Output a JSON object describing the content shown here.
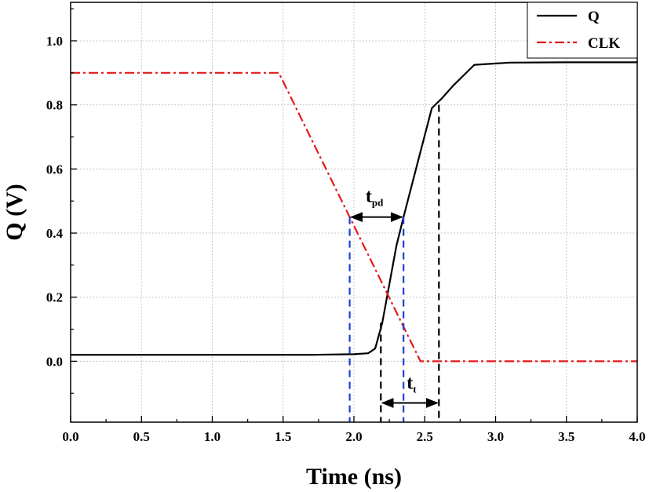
{
  "chart_data": {
    "type": "line",
    "title": "",
    "xlabel": "Time (ns)",
    "ylabel": "Q (V)",
    "xlim": [
      0.0,
      4.0
    ],
    "ylim": [
      -0.19,
      1.12
    ],
    "x_ticks": [
      "0.0",
      "0.5",
      "1.0",
      "1.5",
      "2.0",
      "2.5",
      "3.0",
      "3.5",
      "4.0"
    ],
    "y_ticks": [
      "0.0",
      "0.2",
      "0.4",
      "0.6",
      "0.8",
      "1.0"
    ],
    "grid": true,
    "legend_position": "top-right",
    "series": [
      {
        "name": "Q",
        "color": "#000000",
        "style": "solid",
        "x": [
          0.0,
          1.7,
          2.0,
          2.1,
          2.15,
          2.2,
          2.25,
          2.3,
          2.35,
          2.45,
          2.55,
          2.62,
          2.7,
          2.85,
          3.1,
          3.5,
          4.0
        ],
        "y": [
          0.02,
          0.02,
          0.022,
          0.025,
          0.04,
          0.12,
          0.24,
          0.36,
          0.45,
          0.62,
          0.79,
          0.82,
          0.86,
          0.925,
          0.932,
          0.933,
          0.933
        ]
      },
      {
        "name": "CLK",
        "color": "#e41a1c",
        "style": "dash-dot",
        "x": [
          0.0,
          1.47,
          2.47,
          4.0
        ],
        "y": [
          0.9,
          0.9,
          0.0,
          0.0
        ]
      }
    ],
    "annotations": [
      {
        "main": "t",
        "sub": "pd",
        "from_x": 1.97,
        "to_x": 2.35,
        "y": 0.45,
        "guide_color": "#1f3fd9"
      },
      {
        "main": "t",
        "sub": "t",
        "from_x": 2.19,
        "to_x": 2.6,
        "y": -0.13,
        "guide_color": "#000000"
      }
    ]
  }
}
